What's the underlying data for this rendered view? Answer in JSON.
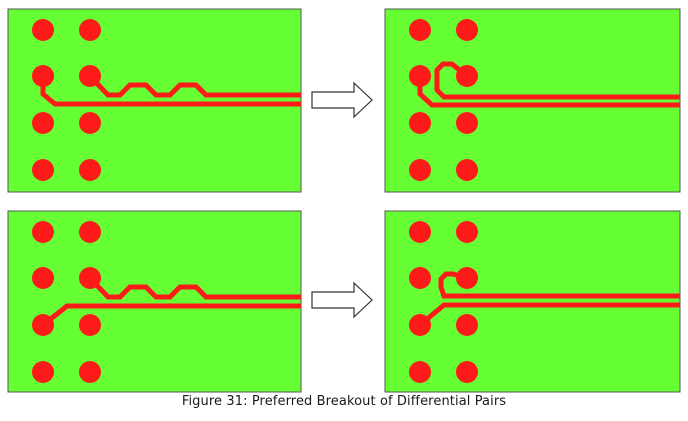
{
  "caption": "Figure 31: Preferred Breakout of Differential Pairs",
  "colors": {
    "board_fill": "#66ff33",
    "board_border": "#555555",
    "pad": "#ff1a1a",
    "trace": "#ff1a1a",
    "arrow_stroke": "#333333",
    "arrow_fill": "#ffffff",
    "caption_text": "#1a1a1a"
  },
  "panels": [
    {
      "name": "top-left-board",
      "pad_grid": "2x4",
      "routing": "serpentine tuning loop, one trace routed from lower-left pad",
      "role": "before"
    },
    {
      "name": "top-right-board",
      "pad_grid": "2x4",
      "routing": "tight breakout hook, one trace routed from lower-left pad",
      "role": "after"
    },
    {
      "name": "bottom-left-board",
      "pad_grid": "2x4",
      "routing": "serpentine tuning loop, diagonal breakout from lower-left pad",
      "role": "before"
    },
    {
      "name": "bottom-right-board",
      "pad_grid": "2x4",
      "routing": "tight breakout hook, diagonal breakout from lower-left pad",
      "role": "after"
    }
  ],
  "arrows": [
    {
      "name": "top-transition-arrow",
      "direction": "right"
    },
    {
      "name": "bottom-transition-arrow",
      "direction": "right"
    }
  ]
}
